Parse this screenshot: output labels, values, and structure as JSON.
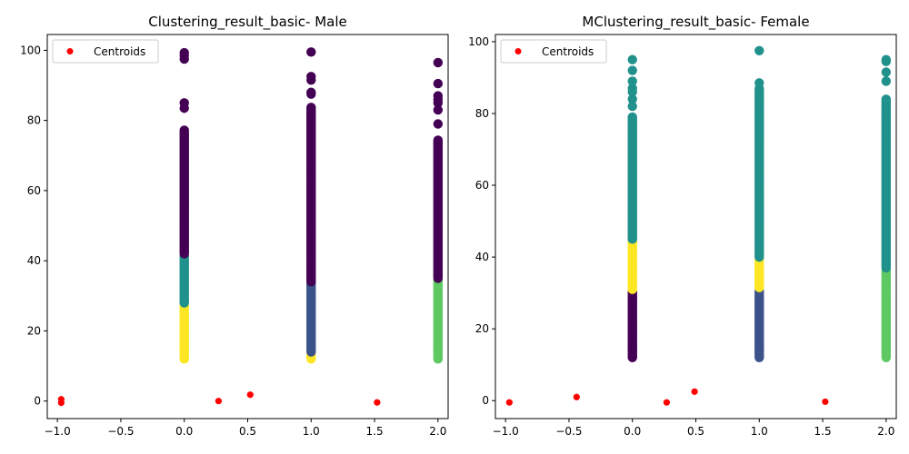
{
  "colors": {
    "purple": "#440154",
    "blue": "#3b528b",
    "teal": "#21918c",
    "green": "#5ec962",
    "yellow": "#fde725",
    "centroid": "#ff0000"
  },
  "chart_data": [
    {
      "type": "scatter",
      "title": "Clustering_result_basic- Male",
      "xlim": [
        -1.08,
        2.08
      ],
      "ylim": [
        -5,
        104.5
      ],
      "x_ticks": [
        -1.0,
        -0.5,
        0.0,
        0.5,
        1.0,
        1.5,
        2.0
      ],
      "x_tick_labels": [
        "−1.0",
        "−0.5",
        "0.0",
        "0.5",
        "1.0",
        "1.5",
        "2.0"
      ],
      "y_ticks": [
        0,
        20,
        40,
        60,
        80,
        100
      ],
      "y_tick_labels": [
        "0",
        "20",
        "40",
        "60",
        "80",
        "100"
      ],
      "legend": {
        "label": "Centroids",
        "position": "top-left"
      },
      "clusters": [
        {
          "x": 0,
          "y_range": [
            12,
            27.5
          ],
          "color": "yellow",
          "points": []
        },
        {
          "x": 0,
          "y_range": [
            28,
            41.5
          ],
          "color": "teal",
          "points": []
        },
        {
          "x": 0,
          "y_range": [
            42,
            77.5
          ],
          "color": "purple",
          "points": [
            83.5,
            85,
            97.5,
            98.5,
            99.3
          ]
        },
        {
          "x": 1,
          "y_range": [
            12,
            13.5
          ],
          "color": "yellow",
          "points": []
        },
        {
          "x": 1,
          "y_range": [
            14,
            33.5
          ],
          "color": "blue",
          "points": []
        },
        {
          "x": 1,
          "y_range": [
            34,
            84
          ],
          "color": "purple",
          "points": [
            87.5,
            88,
            91.5,
            92.5,
            99.5
          ]
        },
        {
          "x": 2,
          "y_range": [
            12,
            34.5
          ],
          "color": "green",
          "points": []
        },
        {
          "x": 2,
          "y_range": [
            35,
            74.5
          ],
          "color": "purple",
          "points": [
            79,
            83,
            85,
            86,
            87,
            90.5,
            96.5
          ]
        }
      ],
      "centroids": [
        {
          "x": -0.97,
          "y": 0.5
        },
        {
          "x": -0.97,
          "y": -0.5
        },
        {
          "x": 0.27,
          "y": 0
        },
        {
          "x": 0.52,
          "y": 1.8
        },
        {
          "x": 1.52,
          "y": -0.4
        }
      ]
    },
    {
      "type": "scatter",
      "title": "MClustering_result_basic- Female",
      "xlim": [
        -1.08,
        2.08
      ],
      "ylim": [
        -5,
        102
      ],
      "x_ticks": [
        -1.0,
        -0.5,
        0.0,
        0.5,
        1.0,
        1.5,
        2.0
      ],
      "x_tick_labels": [
        "−1.0",
        "−0.5",
        "0.0",
        "0.5",
        "1.0",
        "1.5",
        "2.0"
      ],
      "y_ticks": [
        0,
        20,
        40,
        60,
        80,
        100
      ],
      "y_tick_labels": [
        "0",
        "20",
        "40",
        "60",
        "80",
        "100"
      ],
      "legend": {
        "label": "Centroids",
        "position": "top-left"
      },
      "clusters": [
        {
          "x": 0,
          "y_range": [
            12,
            30.5
          ],
          "color": "purple",
          "points": []
        },
        {
          "x": 0,
          "y_range": [
            31,
            44.5
          ],
          "color": "yellow",
          "points": []
        },
        {
          "x": 0,
          "y_range": [
            45,
            79
          ],
          "color": "teal",
          "points": [
            82,
            84,
            86,
            87,
            89,
            92,
            95
          ]
        },
        {
          "x": 1,
          "y_range": [
            12,
            31
          ],
          "color": "blue",
          "points": []
        },
        {
          "x": 1,
          "y_range": [
            31.5,
            39.5
          ],
          "color": "yellow",
          "points": []
        },
        {
          "x": 1,
          "y_range": [
            40,
            87
          ],
          "color": "teal",
          "points": [
            88.5,
            97.5
          ]
        },
        {
          "x": 2,
          "y_range": [
            12,
            36.5
          ],
          "color": "green",
          "points": []
        },
        {
          "x": 2,
          "y_range": [
            37,
            84
          ],
          "color": "teal",
          "points": [
            89,
            91.5,
            94.5,
            95
          ]
        }
      ],
      "centroids": [
        {
          "x": -0.97,
          "y": -0.5
        },
        {
          "x": -0.44,
          "y": 1.0
        },
        {
          "x": 0.27,
          "y": -0.5
        },
        {
          "x": 0.49,
          "y": 2.5
        },
        {
          "x": 1.52,
          "y": -0.3
        }
      ]
    }
  ]
}
